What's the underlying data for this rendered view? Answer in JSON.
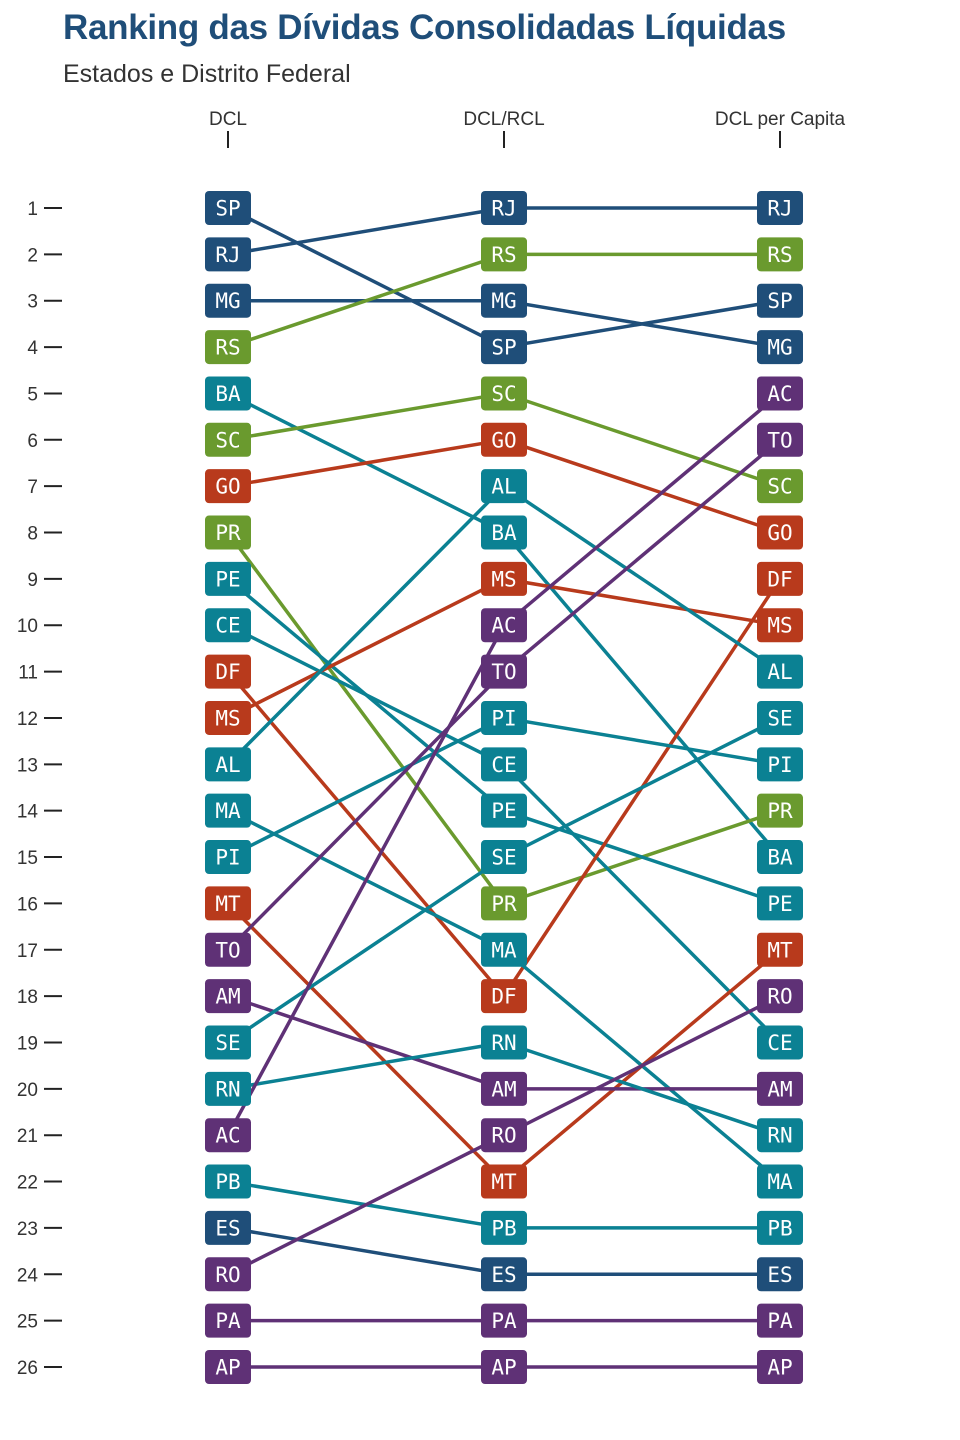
{
  "title": "Ranking das Dívidas Consolidadas Líquidas",
  "subtitle": "Estados e Distrito Federal",
  "chart_data": {
    "type": "bump",
    "columns": [
      "DCL",
      "DCL/RCL",
      "DCL per Capita"
    ],
    "ranks": [
      1,
      2,
      3,
      4,
      5,
      6,
      7,
      8,
      9,
      10,
      11,
      12,
      13,
      14,
      15,
      16,
      17,
      18,
      19,
      20,
      21,
      22,
      23,
      24,
      25,
      26
    ],
    "rankings": {
      "DCL": [
        "SP",
        "RJ",
        "MG",
        "RS",
        "BA",
        "SC",
        "GO",
        "PR",
        "PE",
        "CE",
        "DF",
        "MS",
        "AL",
        "MA",
        "PI",
        "MT",
        "TO",
        "AM",
        "SE",
        "RN",
        "AC",
        "PB",
        "ES",
        "RO",
        "PA",
        "AP"
      ],
      "DCL/RCL": [
        "RJ",
        "RS",
        "MG",
        "SP",
        "SC",
        "GO",
        "AL",
        "BA",
        "MS",
        "AC",
        "TO",
        "PI",
        "CE",
        "PE",
        "SE",
        "PR",
        "MA",
        "DF",
        "RN",
        "AM",
        "RO",
        "MT",
        "PB",
        "ES",
        "PA",
        "AP"
      ],
      "DCL per Capita": [
        "RJ",
        "RS",
        "SP",
        "MG",
        "AC",
        "TO",
        "SC",
        "GO",
        "DF",
        "MS",
        "AL",
        "SE",
        "PI",
        "PR",
        "BA",
        "PE",
        "MT",
        "RO",
        "CE",
        "AM",
        "RN",
        "MA",
        "PB",
        "ES",
        "PA",
        "AP"
      ]
    },
    "state_colors": {
      "SP": "#1f4e79",
      "RJ": "#1f4e79",
      "MG": "#1f4e79",
      "ES": "#1f4e79",
      "RS": "#6a9a2e",
      "SC": "#6a9a2e",
      "PR": "#6a9a2e",
      "BA": "#0b8193",
      "PE": "#0b8193",
      "CE": "#0b8193",
      "AL": "#0b8193",
      "MA": "#0b8193",
      "PI": "#0b8193",
      "SE": "#0b8193",
      "RN": "#0b8193",
      "PB": "#0b8193",
      "GO": "#b83a1c",
      "DF": "#b83a1c",
      "MS": "#b83a1c",
      "MT": "#b83a1c",
      "TO": "#5f3176",
      "AM": "#5f3176",
      "AC": "#5f3176",
      "RO": "#5f3176",
      "PA": "#5f3176",
      "AP": "#5f3176"
    },
    "grid": false,
    "legend": "none"
  }
}
